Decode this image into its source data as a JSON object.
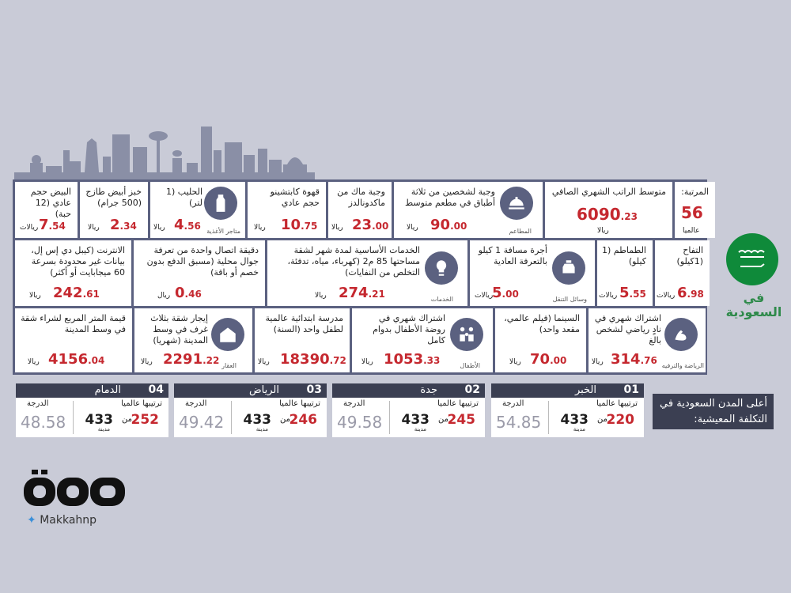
{
  "rank_cell": {
    "label": "المرتبة:",
    "value": "56",
    "sub": "عالميا"
  },
  "salary": {
    "label": "متوسط الراتب الشهري الصافي",
    "value": "6090",
    "dec": ".23",
    "currency": "ريالا"
  },
  "restaurant_meal": {
    "label": "وجبة لشخصين من ثلاثة أطباق في مطعم متوسط",
    "value": "90",
    "dec": ".00",
    "currency": "ريالا",
    "caption": "المطاعم"
  },
  "mcmeal": {
    "label": "وجبة ماك من ماكدونالدز",
    "value": "23",
    "dec": ".00",
    "currency": "ريالا"
  },
  "cappuccino": {
    "label": "قهوة كابتشينو حجم عادي",
    "value": "10",
    "dec": ".75",
    "currency": "ريالا"
  },
  "milk": {
    "label": "الحليب (1 لتر)",
    "value": "4",
    "dec": ".56",
    "currency": "ريالا",
    "caption": "متاجر الأغذية"
  },
  "bread": {
    "label": "خبز أبيض طازج (500 جرام)",
    "value": "2",
    "dec": ".34",
    "currency": "ريالا"
  },
  "eggs": {
    "label": "البيض حجم عادي (12 حبة)",
    "value": "7",
    "dec": ".54",
    "currency": "ريالات"
  },
  "apples": {
    "label": "التفاح (1كيلو)",
    "value": "6",
    "dec": ".98",
    "currency": "ريالات"
  },
  "tomatoes": {
    "label": "الطماطم (1 كيلو)",
    "value": "5",
    "dec": ".55",
    "currency": "ريالات"
  },
  "taxi": {
    "label": "أجرة مسافة 1 كيلو بالتعرفة العادية",
    "value": "5",
    "dec": ".00",
    "currency": "ريالات",
    "caption": "وسائل التنقل"
  },
  "utilities": {
    "label": "الخدمات الأساسية لمدة شهر لشقة مساحتها 85 م2 (كهرباء، مياه، تدفئة، التخلص من النفايات)",
    "value": "274",
    "dec": ".21",
    "currency": "ريالا",
    "caption": "الخدمات"
  },
  "mobile": {
    "label": "دقيقة اتصال واحدة من تعرفة جوال محلية (مسبق الدفع بدون خصم أو باقة)",
    "value": "0",
    "dec": ".46",
    "currency": "ريال"
  },
  "internet": {
    "label": "الانترنت (كيبل دي إس إل، بيانات غير محدودة بسرعة 60 ميجابايت أو أكثر)",
    "value": "242",
    "dec": ".61",
    "currency": "ريالا"
  },
  "gym": {
    "label": "اشتراك شهري في نادٍ رياضي لشخص بالغ",
    "value": "314",
    "dec": ".76",
    "currency": "ريالا",
    "caption": "الرياضة والترفيه"
  },
  "cinema": {
    "label": "السينما (فيلم عالمي، مقعد واحد)",
    "value": "70",
    "dec": ".00",
    "currency": "ريالا"
  },
  "kindergarten": {
    "label": "اشتراك شهري في روضة الأطفال بدوام كامل",
    "value": "1053",
    "dec": ".33",
    "currency": "ريالا",
    "caption": "الأطفال"
  },
  "school": {
    "label": "مدرسة ابتدائية عالمية لطفل واحد (السنة)",
    "value": "18390",
    "dec": ".72",
    "currency": "ريالا"
  },
  "rent": {
    "label": "إيجار شقة بثلاث غرف في وسط المدينة (شهريا)",
    "value": "2291",
    "dec": ".22",
    "currency": "ريالا",
    "caption": "العقار"
  },
  "sqm_price": {
    "label": "قيمة المتر المربع لشراء شقة في وسط المدينة",
    "value": "4156",
    "dec": ".04",
    "currency": "ريالا"
  },
  "flag": {
    "text": "في السعودية"
  },
  "title": "أعلى المدن السعودية في التكلفة المعيشية:",
  "labels": {
    "rank": "ترتيبها عالميا",
    "score": "الدرجة",
    "of": "من",
    "city": "مدينة"
  },
  "cities": [
    {
      "num": "01",
      "name": "الخبر",
      "rank": "220",
      "total": "433",
      "score": "54.85"
    },
    {
      "num": "02",
      "name": "جدة",
      "rank": "245",
      "total": "433",
      "score": "49.58"
    },
    {
      "num": "03",
      "name": "الرياض",
      "rank": "246",
      "total": "433",
      "score": "49.42"
    },
    {
      "num": "04",
      "name": "الدمام",
      "rank": "252",
      "total": "433",
      "score": "48.58"
    }
  ],
  "logo": {
    "text": "مكة",
    "handle": "Makkahnp"
  },
  "colors": {
    "accent": "#c5282f",
    "frame": "#5b6180",
    "green": "#0f8a3a"
  }
}
